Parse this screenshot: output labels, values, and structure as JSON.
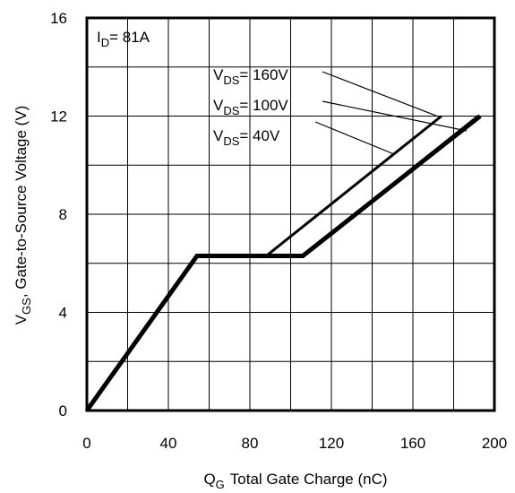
{
  "chart_data": {
    "type": "line",
    "xlabel_main": "Q",
    "xlabel_sub": "G",
    "xlabel_rest": "Total Gate Charge (nC)",
    "ylabel_main": "V",
    "ylabel_sub": "GS",
    "ylabel_rest": ", Gate-to-Source Voltage (V)",
    "xlim": [
      0,
      200
    ],
    "ylim": [
      0,
      16
    ],
    "x_ticks": [
      0,
      40,
      80,
      120,
      160,
      200
    ],
    "y_ticks": [
      0,
      4,
      8,
      12,
      16
    ],
    "x_tick_labels": [
      "0",
      "40",
      "80",
      "120",
      "160",
      "200"
    ],
    "y_tick_labels": [
      "0",
      "4",
      "8",
      "12",
      "16"
    ],
    "grid_x": [
      0,
      20,
      40,
      60,
      80,
      100,
      120,
      140,
      160,
      180,
      200
    ],
    "grid_y": [
      0,
      2,
      4,
      6,
      8,
      10,
      12,
      14,
      16
    ],
    "condition": {
      "main": "I",
      "sub": "D",
      "rest": "= 81A"
    },
    "series": [
      {
        "label_main": "V",
        "label_sub": "DS",
        "label_rest": "= 160V",
        "points": [
          [
            0,
            0
          ],
          [
            54,
            6.3
          ],
          [
            88,
            6.3
          ],
          [
            174,
            12.0
          ]
        ]
      },
      {
        "label_main": "V",
        "label_sub": "DS",
        "label_rest": "= 100V",
        "points": [
          [
            0,
            0
          ],
          [
            54,
            6.3
          ],
          [
            106,
            6.3
          ],
          [
            192,
            12.0
          ]
        ]
      },
      {
        "label_main": "V",
        "label_sub": "DS",
        "label_rest": "= 40V",
        "points": [
          [
            0,
            0
          ],
          [
            54,
            6.3
          ],
          [
            106,
            6.3
          ],
          [
            193,
            12.0
          ]
        ]
      }
    ]
  }
}
